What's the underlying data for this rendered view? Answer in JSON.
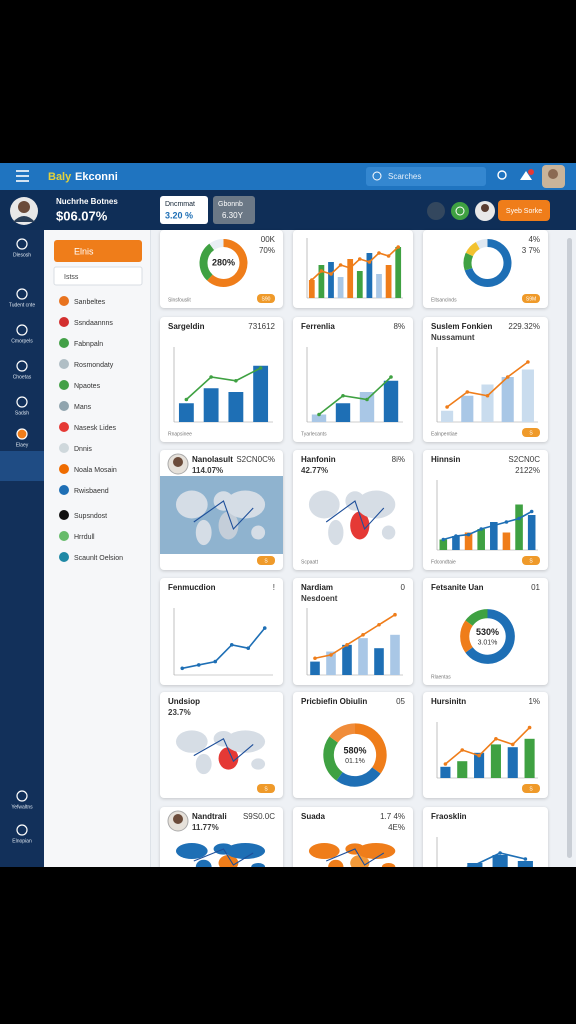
{
  "brand": {
    "a": "Baly",
    "b": "Ekconni"
  },
  "search": "Scarches",
  "profile": {
    "name": "Nuchrhe Botnes",
    "value": "$06.07%"
  },
  "pills": [
    {
      "label": "Dncmmat",
      "value": "3.20 %"
    },
    {
      "label": "Gbonnb",
      "value": "6.30Y"
    }
  ],
  "action": "Syeb Sorke",
  "nav": [
    "Dlesosh",
    "Tudent cnte",
    "Cmorpels",
    "Choetas",
    "Sadsh",
    "Elaey",
    "Yefwaltns",
    "Elnopian"
  ],
  "menu": {
    "button": "Elnis",
    "box": "Istss",
    "items": [
      {
        "label": "Sanbeltes",
        "color": "#e8731f"
      },
      {
        "label": "Ssndaannns",
        "color": "#d32f2f"
      },
      {
        "label": "Fabnpaln",
        "color": "#43a047"
      },
      {
        "label": "Rosmondaty",
        "color": "#b0bec5"
      },
      {
        "label": "Npaotes",
        "color": "#43a047"
      },
      {
        "label": "Mans",
        "color": "#90a4ae"
      },
      {
        "label": "Nasesk Lides",
        "color": "#e53935"
      },
      {
        "label": "Dnnis",
        "color": "#cfd8dc"
      },
      {
        "label": "Noala Mosain",
        "color": "#ef6c00"
      },
      {
        "label": "Rwisbaend",
        "color": "#1e6fb5"
      },
      {
        "label": "Supsndost",
        "color": "#111111"
      },
      {
        "label": "Hrrdull",
        "color": "#66bb6a"
      },
      {
        "label": "Scaunlt Oelsion",
        "color": "#1e88a5"
      }
    ]
  },
  "cards": [
    {
      "center": "280%",
      "stat": "00K",
      "stat2": "70%",
      "footer": "Slnsfouslit",
      "badge": "S90",
      "chart": {
        "type": "donut",
        "values": [
          62,
          28,
          10
        ],
        "colors": [
          "#ef7d1a",
          "#3fa142",
          "#e8eef4"
        ]
      }
    },
    {
      "chart": {
        "type": "bar",
        "ylim": [
          0,
          100
        ],
        "values": [
          30,
          55,
          60,
          35,
          65,
          45,
          75,
          40,
          55,
          85
        ],
        "colors": [
          "#ef7d1a",
          "#3fa142",
          "#1e6fb5",
          "#a9c7e6"
        ],
        "line": [
          30,
          45,
          40,
          55,
          50,
          65,
          60,
          75,
          70,
          85
        ],
        "lineColor": "#ef7d1a"
      }
    },
    {
      "stat": "4%",
      "stat2": "3 7%",
      "footer": "Eltsanclnds",
      "badge": "S9M",
      "chart": {
        "type": "donut",
        "values": [
          70,
          12,
          10,
          8
        ],
        "colors": [
          "#1e6fb5",
          "#3fa142",
          "#f2c230",
          "#dfe8f1"
        ]
      }
    },
    {
      "title": "Sargeldin",
      "stat": "731612",
      "footer": "Rnapsinee",
      "chart": {
        "type": "bar",
        "ylim": [
          0,
          100
        ],
        "values": [
          25,
          45,
          40,
          75
        ],
        "colors": [
          "#1e6fb5"
        ],
        "line": [
          30,
          60,
          55,
          72
        ],
        "lineColor": "#3fa142"
      }
    },
    {
      "title": "Ferrenlia",
      "stat": "8%",
      "footer": "Tyarlecants",
      "chart": {
        "type": "bar",
        "ylim": [
          0,
          100
        ],
        "values": [
          10,
          25,
          40,
          55
        ],
        "colors": [
          "#a9c7e6",
          "#1e6fb5"
        ],
        "line": [
          10,
          35,
          30,
          60
        ],
        "lineColor": "#3fa142"
      }
    },
    {
      "title": "Suslem Fonkien",
      "sub": "Nussamunt",
      "stat": "229.32%",
      "footer": "Ealnpentiae",
      "badge": "S",
      "chart": {
        "type": "bar",
        "ylim": [
          0,
          100
        ],
        "values": [
          15,
          35,
          50,
          60,
          70
        ],
        "colors": [
          "#c9dcee",
          "#a9c7e6"
        ],
        "line": [
          20,
          40,
          35,
          60,
          80
        ],
        "lineColor": "#ef7d1a"
      }
    },
    {
      "title": "Nanolasult",
      "sub": "114.07%",
      "stat": "S2CN0C%",
      "avatar": true,
      "badge": "S",
      "chart": {
        "type": "map",
        "bg": "#8fb3cf",
        "colors": [
          "#d5dde6",
          "#c4ced9"
        ]
      }
    },
    {
      "title": "Hanfonin",
      "sub": "42.77%",
      "stat": "8i%",
      "footer": "Scpaatt",
      "chart": {
        "type": "map",
        "bg": "#ffffff",
        "colors": [
          "#d6dde5",
          "#e53935"
        ]
      }
    },
    {
      "title": "Hinnsin",
      "stat": "S2CN0C",
      "stat2": "2122%",
      "footer": "Fdcondtaie",
      "badge": "S",
      "chart": {
        "type": "bar",
        "ylim": [
          0,
          100
        ],
        "values": [
          15,
          20,
          25,
          30,
          40,
          25,
          65,
          50
        ],
        "colors": [
          "#3fa142",
          "#1e6fb5",
          "#ef7d1a"
        ],
        "line": [
          15,
          20,
          22,
          30,
          35,
          40,
          45,
          55
        ],
        "lineColor": "#1e6fb5"
      }
    },
    {
      "title": "Fenmucdion",
      "stat": "!",
      "chart": {
        "type": "line",
        "ylim": [
          0,
          100
        ],
        "line": [
          10,
          15,
          20,
          45,
          40,
          70
        ],
        "lineColor": "#1e6fb5"
      }
    },
    {
      "title": "Nardiam",
      "sub": "Nesdoent",
      "stat": "0",
      "chart": {
        "type": "bar",
        "ylim": [
          0,
          100
        ],
        "values": [
          20,
          35,
          45,
          55,
          40,
          60
        ],
        "colors": [
          "#1e6fb5",
          "#a9c7e6"
        ],
        "line": [
          25,
          30,
          45,
          60,
          75,
          90
        ],
        "lineColor": "#ef7d1a"
      }
    },
    {
      "title": "Fetsanite Uan",
      "stat": "01",
      "center": "530%",
      "center2": "3.01%",
      "footer": "Rlaentas",
      "chart": {
        "type": "donut",
        "values": [
          65,
          20,
          15
        ],
        "colors": [
          "#1e6fb5",
          "#ef7d1a",
          "#3fa142"
        ]
      }
    },
    {
      "title": "Undsiop",
      "sub": "23.7%",
      "badge": "S",
      "chart": {
        "type": "map",
        "bg": "#ffffff",
        "colors": [
          "#d6dde5",
          "#e53935"
        ]
      }
    },
    {
      "title": "Pricbiefin Obiulin",
      "stat": "05",
      "center": "580%",
      "center2": "01.1%",
      "chart": {
        "type": "donut",
        "values": [
          35,
          25,
          25,
          15
        ],
        "colors": [
          "#ef7d1a",
          "#1e6fb5",
          "#3fa142",
          "#f08c3a"
        ]
      }
    },
    {
      "title": "Hursinitn",
      "stat": "1%",
      "badge": "S",
      "chart": {
        "type": "bar",
        "ylim": [
          0,
          100
        ],
        "values": [
          20,
          30,
          45,
          60,
          55,
          70
        ],
        "colors": [
          "#1e6fb5",
          "#3fa142"
        ],
        "line": [
          25,
          50,
          40,
          70,
          60,
          90
        ],
        "lineColor": "#ef7d1a"
      }
    },
    {
      "title": "Nandtrali",
      "sub": "11.77%",
      "stat": "S9S0.0C",
      "avatar": true,
      "chart": {
        "type": "map",
        "bg": "#ffffff",
        "colors": [
          "#1e6fb5",
          "#ef7d1a"
        ]
      }
    },
    {
      "title": "Suada",
      "stat": "1.7 4%",
      "stat2": "4E%",
      "chart": {
        "type": "map",
        "bg": "#ffffff",
        "colors": [
          "#ef7d1a",
          "#f29a3a"
        ]
      }
    },
    {
      "title": "Fraosklin",
      "chart": {
        "type": "bar",
        "ylim": [
          0,
          100
        ],
        "values": [
          20,
          35,
          55,
          40
        ],
        "colors": [
          "#1e6fb5"
        ],
        "line": [
          10,
          30,
          60,
          45
        ],
        "lineColor": "#1e6fb5"
      }
    }
  ]
}
